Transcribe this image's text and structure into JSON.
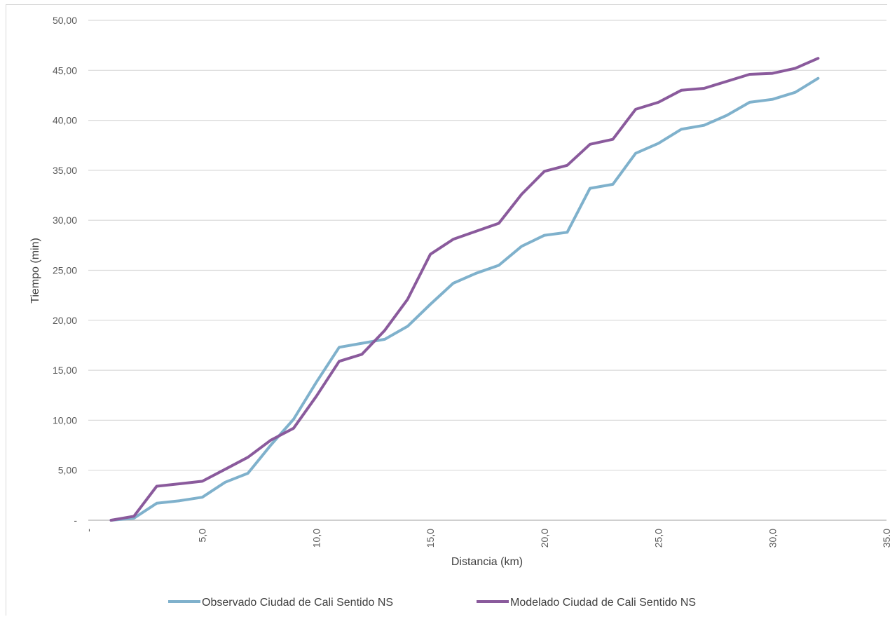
{
  "chart_data": {
    "type": "line",
    "title": "",
    "xlabel": "Distancia (km)",
    "ylabel": "Tiempo (min)",
    "xlim": [
      0,
      35
    ],
    "ylim": [
      0,
      50
    ],
    "x_ticks": [
      {
        "value": 0,
        "label": "-"
      },
      {
        "value": 5,
        "label": "5,0"
      },
      {
        "value": 10,
        "label": "10,0"
      },
      {
        "value": 15,
        "label": "15,0"
      },
      {
        "value": 20,
        "label": "20,0"
      },
      {
        "value": 25,
        "label": "25,0"
      },
      {
        "value": 30,
        "label": "30,0"
      },
      {
        "value": 35,
        "label": "35,0"
      }
    ],
    "y_ticks": [
      {
        "value": 0,
        "label": "-"
      },
      {
        "value": 5,
        "label": "5,00"
      },
      {
        "value": 10,
        "label": "10,00"
      },
      {
        "value": 15,
        "label": "15,00"
      },
      {
        "value": 20,
        "label": "20,00"
      },
      {
        "value": 25,
        "label": "25,00"
      },
      {
        "value": 30,
        "label": "30,00"
      },
      {
        "value": 35,
        "label": "35,00"
      },
      {
        "value": 40,
        "label": "40,00"
      },
      {
        "value": 45,
        "label": "45,00"
      },
      {
        "value": 50,
        "label": "50,00"
      }
    ],
    "grid": "horizontal",
    "legend_position": "bottom",
    "series": [
      {
        "name": "Observado Ciudad de Cali  Sentido NS",
        "color": "#7fb1cc",
        "points": [
          [
            1,
            0
          ],
          [
            2,
            0.2
          ],
          [
            3,
            1.7
          ],
          [
            4,
            1.95
          ],
          [
            5,
            2.3
          ],
          [
            6,
            3.8
          ],
          [
            7,
            4.7
          ],
          [
            8,
            7.5
          ],
          [
            9,
            10.1
          ],
          [
            10,
            13.8
          ],
          [
            11,
            17.3
          ],
          [
            12,
            17.7
          ],
          [
            13,
            18.1
          ],
          [
            14,
            19.4
          ],
          [
            15,
            21.6
          ],
          [
            16,
            23.7
          ],
          [
            17,
            24.7
          ],
          [
            18,
            25.5
          ],
          [
            19,
            27.4
          ],
          [
            20,
            28.5
          ],
          [
            21,
            28.8
          ],
          [
            22,
            33.2
          ],
          [
            23,
            33.6
          ],
          [
            24,
            36.7
          ],
          [
            25,
            37.7
          ],
          [
            26,
            39.1
          ],
          [
            27,
            39.5
          ],
          [
            28,
            40.5
          ],
          [
            29,
            41.8
          ],
          [
            30,
            42.1
          ],
          [
            31,
            42.8
          ],
          [
            32,
            44.2
          ]
        ]
      },
      {
        "name": "Modelado Ciudad de Cali  Sentido NS",
        "color": "#8a5a9c",
        "points": [
          [
            1,
            0
          ],
          [
            2,
            0.4
          ],
          [
            3,
            3.4
          ],
          [
            4,
            3.65
          ],
          [
            5,
            3.9
          ],
          [
            6,
            5.1
          ],
          [
            7,
            6.3
          ],
          [
            8,
            8
          ],
          [
            9,
            9.2
          ],
          [
            10,
            12.4
          ],
          [
            11,
            15.9
          ],
          [
            12,
            16.6
          ],
          [
            13,
            19
          ],
          [
            14,
            22.1
          ],
          [
            15,
            26.6
          ],
          [
            16,
            28.1
          ],
          [
            17,
            28.9
          ],
          [
            18,
            29.7
          ],
          [
            19,
            32.6
          ],
          [
            20,
            34.9
          ],
          [
            21,
            35.5
          ],
          [
            22,
            37.6
          ],
          [
            23,
            38.1
          ],
          [
            24,
            41.1
          ],
          [
            25,
            41.8
          ],
          [
            26,
            43
          ],
          [
            27,
            43.2
          ],
          [
            28,
            43.9
          ],
          [
            29,
            44.6
          ],
          [
            30,
            44.7
          ],
          [
            31,
            45.2
          ],
          [
            32,
            46.2
          ]
        ]
      }
    ]
  }
}
